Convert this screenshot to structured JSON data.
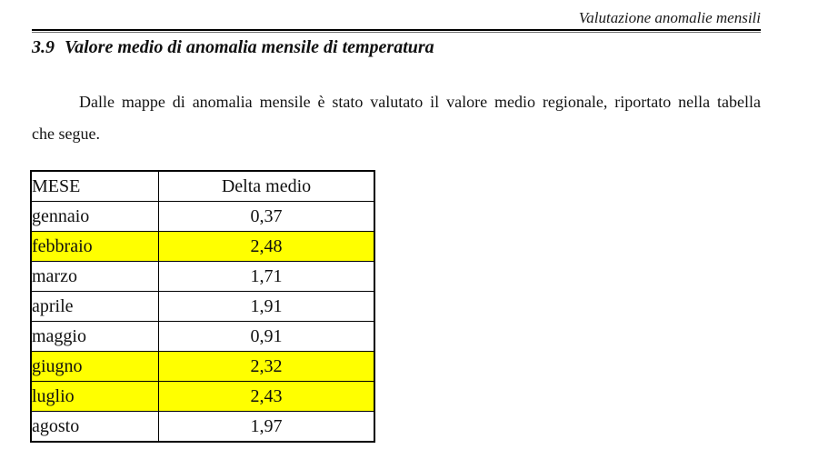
{
  "header": {
    "text": "Valutazione anomalie mensili"
  },
  "section": {
    "number": "3.9",
    "title": "Valore medio di anomalia mensile di temperatura"
  },
  "paragraph": {
    "line1": "Dalle mappe di anomalia mensile è stato valutato il valore medio  regionale,  riportato nella tabella",
    "line2": "che segue."
  },
  "table": {
    "columns": [
      "MESE",
      "Delta medio"
    ],
    "rows": [
      {
        "mese": "gennaio",
        "delta": "0,37",
        "highlight": false
      },
      {
        "mese": "febbraio",
        "delta": "2,48",
        "highlight": true
      },
      {
        "mese": "marzo",
        "delta": "1,71",
        "highlight": false
      },
      {
        "mese": "aprile",
        "delta": "1,91",
        "highlight": false
      },
      {
        "mese": "maggio",
        "delta": "0,91",
        "highlight": false
      },
      {
        "mese": "giugno",
        "delta": "2,32",
        "highlight": true
      },
      {
        "mese": "luglio",
        "delta": "2,43",
        "highlight": true
      },
      {
        "mese": "agosto",
        "delta": "1,97",
        "highlight": false
      }
    ],
    "highlight_color": "#ffff00"
  }
}
